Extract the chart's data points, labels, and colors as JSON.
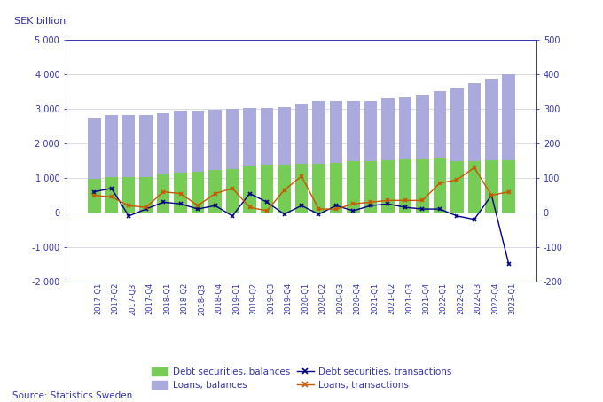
{
  "categories": [
    "2017-Q1",
    "2017-Q2",
    "2017-Q3",
    "2017-Q4",
    "2018-Q1",
    "2018-Q2",
    "2018-Q3",
    "2018-Q4",
    "2019-Q1",
    "2019-Q2",
    "2019-Q3",
    "2019-Q4",
    "2020-Q1",
    "2020-Q2",
    "2020-Q3",
    "2020-Q4",
    "2021-Q1",
    "2021-Q2",
    "2021-Q3",
    "2021-Q4",
    "2022-Q1",
    "2022-Q2",
    "2022-Q3",
    "2022-Q4",
    "2023-Q1"
  ],
  "loans_balances": [
    2750,
    2820,
    2830,
    2830,
    2870,
    2950,
    2960,
    2990,
    3000,
    3040,
    3040,
    3050,
    3170,
    3230,
    3240,
    3230,
    3250,
    3310,
    3350,
    3420,
    3530,
    3610,
    3740,
    3890,
    4000
  ],
  "debt_securities_balances": [
    980,
    1030,
    1040,
    1040,
    1100,
    1160,
    1190,
    1220,
    1260,
    1350,
    1390,
    1390,
    1420,
    1420,
    1450,
    1480,
    1500,
    1520,
    1540,
    1550,
    1560,
    1500,
    1480,
    1520,
    1520
  ],
  "debt_securities_transactions": [
    60,
    70,
    -10,
    10,
    30,
    25,
    10,
    20,
    -10,
    55,
    30,
    -5,
    20,
    -5,
    20,
    5,
    20,
    25,
    15,
    10,
    10,
    -10,
    -20,
    50,
    -150
  ],
  "loans_transactions": [
    50,
    45,
    20,
    15,
    60,
    55,
    20,
    55,
    70,
    15,
    5,
    65,
    105,
    10,
    10,
    25,
    30,
    35,
    35,
    35,
    85,
    95,
    130,
    50,
    60
  ],
  "bar_color_loans": "#aaaadd",
  "bar_color_debt": "#77cc55",
  "line_color_debt_trans": "#000088",
  "line_color_loans_trans": "#cc5500",
  "left_ylim": [
    -2000,
    5000
  ],
  "right_ylim": [
    -200,
    500
  ],
  "title_label": "SEK billion",
  "background_color": "#ffffff",
  "grid_color": "#ccccdd"
}
